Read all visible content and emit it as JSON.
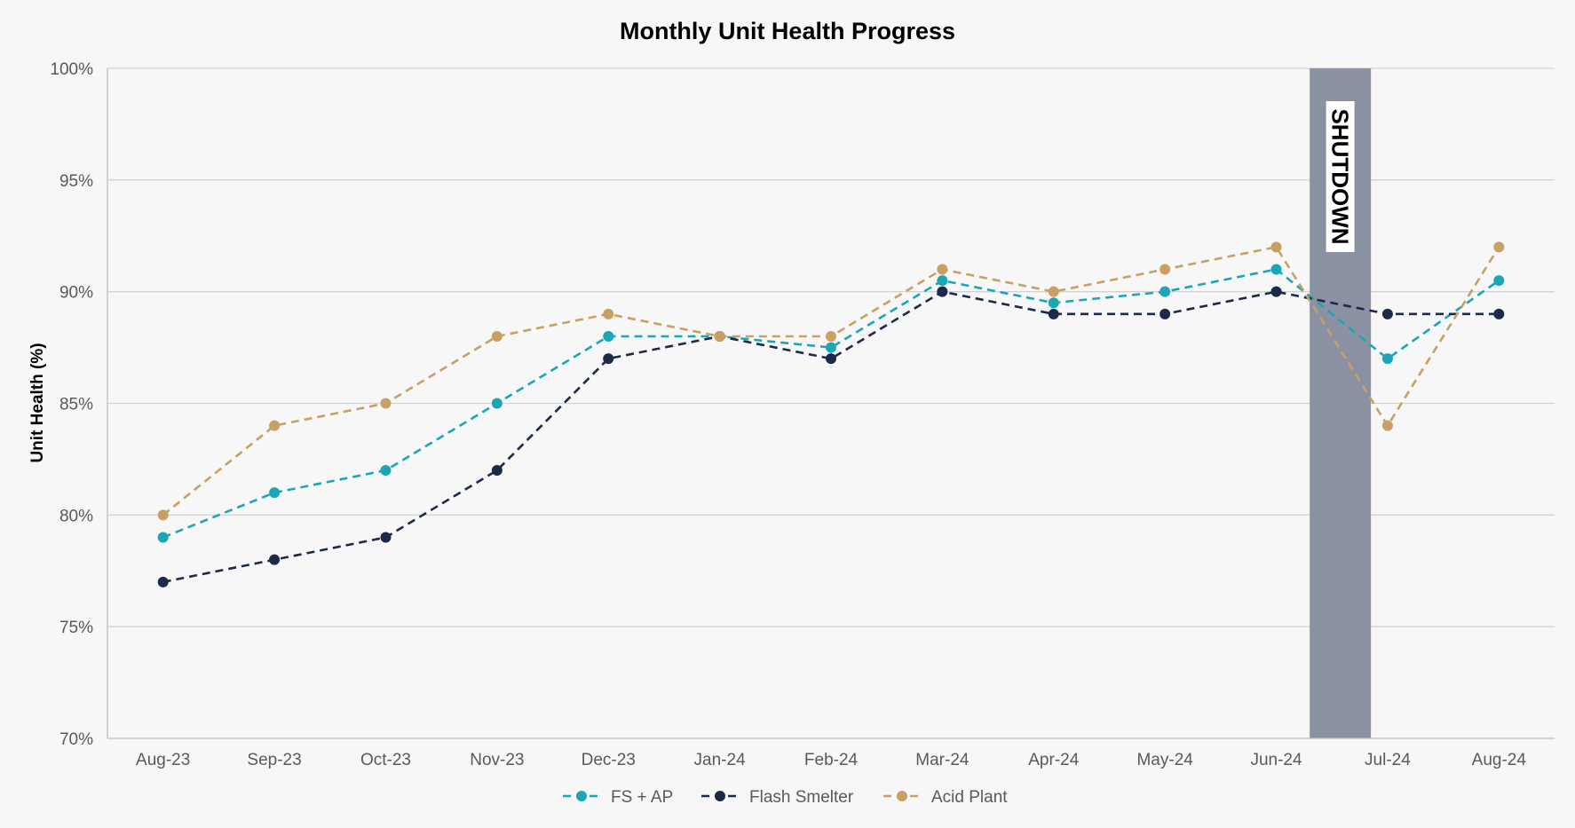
{
  "chart_data": {
    "type": "line",
    "title": "Monthly Unit Health Progress",
    "xlabel": "",
    "ylabel": "Unit Health (%)",
    "ylim": [
      70,
      100
    ],
    "yticks": [
      70,
      75,
      80,
      85,
      90,
      95,
      100
    ],
    "ytick_labels": [
      "70%",
      "75%",
      "80%",
      "85%",
      "90%",
      "95%",
      "100%"
    ],
    "grid": "horizontal",
    "legend_position": "bottom",
    "categories": [
      "Aug-23",
      "Sep-23",
      "Oct-23",
      "Nov-23",
      "Dec-23",
      "Jan-24",
      "Feb-24",
      "Mar-24",
      "Apr-24",
      "May-24",
      "Jun-24",
      "Jul-24",
      "Aug-24"
    ],
    "series": [
      {
        "name": "FS + AP",
        "color": "#1aa6b7",
        "values": [
          79,
          81,
          82,
          85,
          88,
          88,
          87.5,
          90.5,
          89.5,
          90,
          91,
          87,
          90.5
        ]
      },
      {
        "name": "Flash Smelter",
        "color": "#1c2a4a",
        "values": [
          77,
          78,
          79,
          82,
          87,
          88,
          87,
          90,
          89,
          89,
          90,
          89,
          89
        ]
      },
      {
        "name": "Acid Plant",
        "color": "#c9a063",
        "values": [
          80,
          84,
          85,
          88,
          89,
          88,
          88,
          91,
          90,
          91,
          92,
          84,
          92
        ]
      }
    ],
    "annotations": [
      {
        "type": "shaded_band",
        "label": "SHUTDOWN",
        "x_start": 10.3,
        "x_end": 10.85,
        "color": "#8a91a2"
      }
    ]
  }
}
